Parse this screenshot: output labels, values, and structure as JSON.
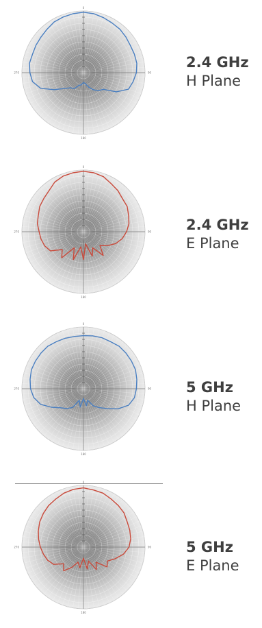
{
  "chart_data": [
    {
      "type": "polar",
      "frequency": "2.4 GHz",
      "plane": "H Plane",
      "color": "#4a7fc1",
      "angle_labels": [
        "0",
        "270",
        "90",
        "180"
      ],
      "angles_deg": [
        0,
        10,
        20,
        30,
        40,
        50,
        60,
        70,
        80,
        90,
        100,
        110,
        120,
        130,
        140,
        150,
        160,
        170,
        180,
        190,
        200,
        210,
        220,
        230,
        240,
        250,
        260,
        270,
        280,
        290,
        300,
        310,
        320,
        330,
        340,
        350
      ],
      "radius": [
        0.98,
        0.97,
        0.95,
        0.93,
        0.92,
        0.9,
        0.88,
        0.88,
        0.88,
        0.86,
        0.82,
        0.78,
        0.62,
        0.42,
        0.38,
        0.32,
        0.25,
        0.18,
        0.16,
        0.2,
        0.22,
        0.3,
        0.32,
        0.4,
        0.55,
        0.74,
        0.84,
        0.87,
        0.89,
        0.88,
        0.89,
        0.9,
        0.92,
        0.95,
        0.96,
        0.97
      ]
    },
    {
      "type": "polar",
      "frequency": "2.4 GHz",
      "plane": "E Plane",
      "color": "#c94a3b",
      "angle_labels": [
        "0",
        "270",
        "90",
        "180"
      ],
      "angles_deg": [
        0,
        10,
        20,
        30,
        40,
        50,
        60,
        70,
        80,
        90,
        100,
        110,
        120,
        130,
        140,
        150,
        160,
        170,
        180,
        190,
        200,
        210,
        220,
        230,
        240,
        250,
        260,
        270,
        280,
        290,
        300,
        310,
        320,
        330,
        340,
        350
      ],
      "radius": [
        0.98,
        0.97,
        0.95,
        0.9,
        0.87,
        0.83,
        0.82,
        0.78,
        0.75,
        0.7,
        0.64,
        0.56,
        0.45,
        0.35,
        0.5,
        0.3,
        0.42,
        0.2,
        0.45,
        0.25,
        0.48,
        0.3,
        0.55,
        0.45,
        0.62,
        0.67,
        0.7,
        0.72,
        0.76,
        0.78,
        0.82,
        0.84,
        0.87,
        0.93,
        0.96,
        0.97
      ]
    },
    {
      "type": "polar",
      "frequency": "5 GHz",
      "plane": "H Plane",
      "color": "#4a7fc1",
      "angle_labels": [
        "0",
        "270",
        "90",
        "180"
      ],
      "angles_deg": [
        0,
        10,
        20,
        30,
        40,
        50,
        60,
        70,
        80,
        90,
        100,
        110,
        120,
        130,
        140,
        150,
        160,
        170,
        180,
        190,
        200,
        210,
        220,
        230,
        240,
        250,
        260,
        270,
        280,
        290,
        300,
        310,
        320,
        330,
        340,
        350
      ],
      "radius": [
        0.86,
        0.87,
        0.88,
        0.88,
        0.9,
        0.9,
        0.9,
        0.9,
        0.88,
        0.86,
        0.84,
        0.78,
        0.65,
        0.5,
        0.4,
        0.32,
        0.2,
        0.28,
        0.16,
        0.3,
        0.2,
        0.35,
        0.42,
        0.48,
        0.6,
        0.74,
        0.82,
        0.86,
        0.88,
        0.9,
        0.9,
        0.9,
        0.9,
        0.88,
        0.87,
        0.86
      ]
    },
    {
      "type": "polar",
      "frequency": "5 GHz",
      "plane": "E Plane",
      "color": "#c94a3b",
      "angle_labels": [
        "0",
        "270",
        "90",
        "180"
      ],
      "angles_deg": [
        0,
        10,
        20,
        30,
        40,
        50,
        60,
        70,
        80,
        90,
        100,
        110,
        120,
        130,
        140,
        150,
        160,
        170,
        180,
        190,
        200,
        210,
        220,
        230,
        240,
        250,
        260,
        270,
        280,
        290,
        300,
        310,
        320,
        330,
        340,
        350
      ],
      "radius": [
        0.96,
        0.94,
        0.93,
        0.9,
        0.88,
        0.86,
        0.82,
        0.8,
        0.78,
        0.74,
        0.66,
        0.55,
        0.45,
        0.5,
        0.32,
        0.42,
        0.24,
        0.36,
        0.18,
        0.34,
        0.26,
        0.38,
        0.5,
        0.42,
        0.56,
        0.62,
        0.66,
        0.7,
        0.74,
        0.78,
        0.82,
        0.85,
        0.88,
        0.9,
        0.93,
        0.95
      ]
    }
  ]
}
